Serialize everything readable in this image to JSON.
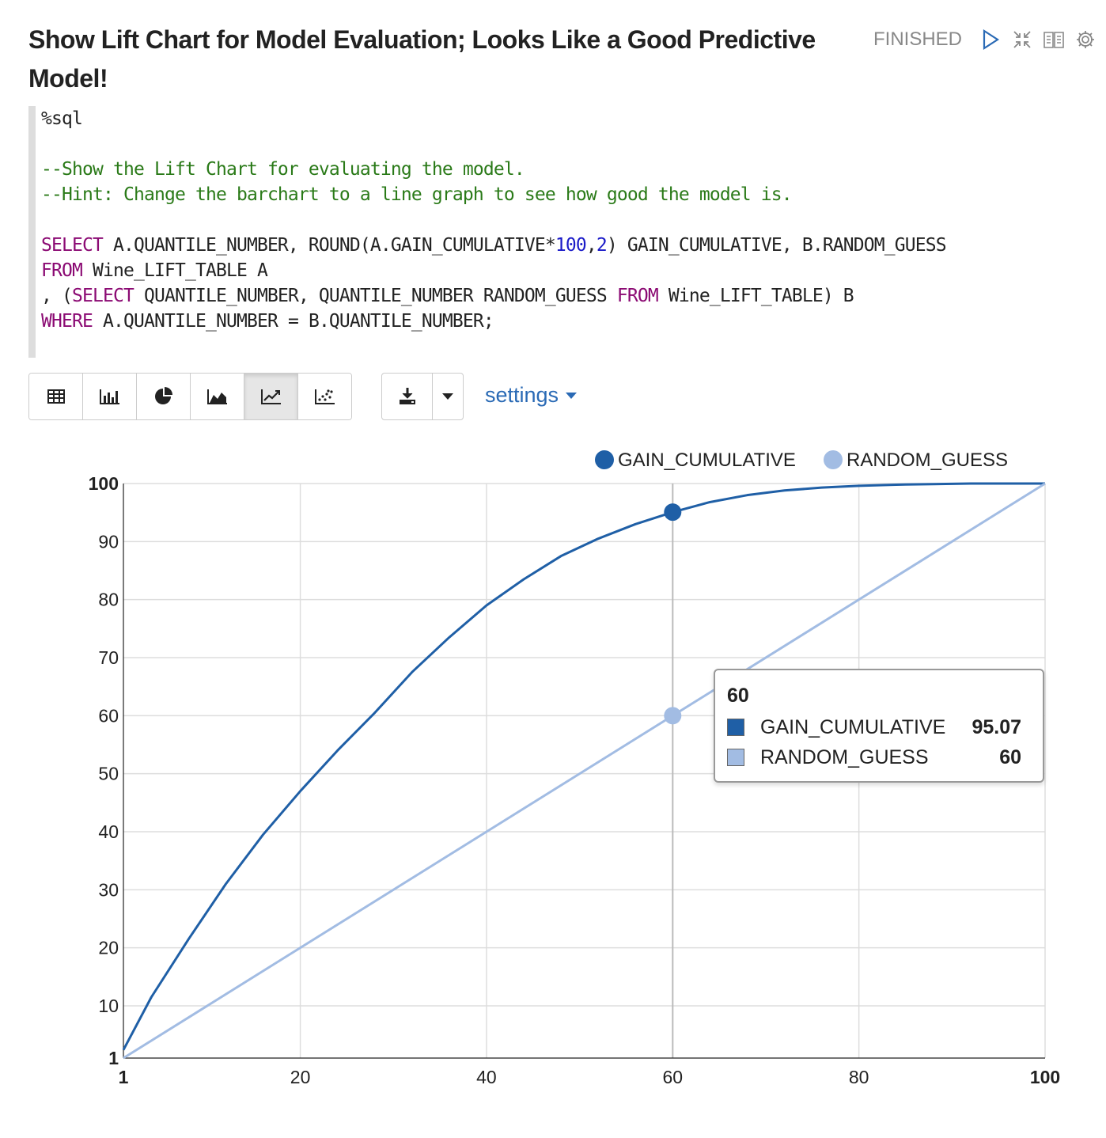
{
  "paragraph": {
    "title": "Show Lift Chart for Model Evaluation; Looks Like a Good Predictive Model!",
    "status": "FINISHED",
    "icons": [
      "run-icon",
      "collapse-icon",
      "book-icon",
      "settings-gear-icon"
    ]
  },
  "editor": {
    "lines": [
      [
        {
          "t": "%sql",
          "c": ""
        }
      ],
      [],
      [
        {
          "t": "--Show the Lift Chart for evaluating the model.",
          "c": "cm"
        }
      ],
      [
        {
          "t": "--Hint: Change the barchart to a line graph to see how good the model is.",
          "c": "cm"
        }
      ],
      [],
      [
        {
          "t": "SELECT",
          "c": "kw"
        },
        {
          "t": " A.QUANTILE_NUMBER, ROUND(A.GAIN_CUMULATIVE*",
          "c": ""
        },
        {
          "t": "100",
          "c": "num"
        },
        {
          "t": ",",
          "c": ""
        },
        {
          "t": "2",
          "c": "num"
        },
        {
          "t": ") GAIN_CUMULATIVE, B.RANDOM_GUESS",
          "c": ""
        }
      ],
      [
        {
          "t": "FROM",
          "c": "kw"
        },
        {
          "t": " Wine_LIFT_TABLE A",
          "c": ""
        }
      ],
      [
        {
          "t": ", (",
          "c": ""
        },
        {
          "t": "SELECT",
          "c": "kw"
        },
        {
          "t": " QUANTILE_NUMBER, QUANTILE_NUMBER RANDOM_GUESS ",
          "c": ""
        },
        {
          "t": "FROM",
          "c": "kw"
        },
        {
          "t": " Wine_LIFT_TABLE) B",
          "c": ""
        }
      ],
      [
        {
          "t": "WHERE",
          "c": "kw"
        },
        {
          "t": " A.QUANTILE_NUMBER = B.QUANTILE_NUMBER;",
          "c": ""
        }
      ]
    ]
  },
  "toolbar": {
    "views": [
      "table-icon",
      "bar-chart-icon",
      "pie-chart-icon",
      "area-chart-icon",
      "line-chart-icon",
      "scatter-chart-icon"
    ],
    "active_view": "line-chart-icon",
    "download_icon": "download-icon",
    "dropdown_icon": "caret-down-icon",
    "settings_label": "settings"
  },
  "colors": {
    "gain": "#1f5fa6",
    "random": "#a2bce3",
    "link": "#2a6ab5"
  },
  "chart_data": {
    "type": "line",
    "xlim": [
      1,
      100
    ],
    "ylim": [
      1,
      100
    ],
    "x_ticks": [
      1,
      20,
      40,
      60,
      80,
      100
    ],
    "y_ticks": [
      1,
      10,
      20,
      30,
      40,
      50,
      60,
      70,
      80,
      90,
      100
    ],
    "grid": true,
    "legend_position": "top-right",
    "series": [
      {
        "name": "GAIN_CUMULATIVE",
        "x": [
          1,
          4,
          8,
          12,
          16,
          20,
          24,
          28,
          32,
          36,
          40,
          44,
          48,
          52,
          56,
          60,
          64,
          68,
          72,
          76,
          80,
          84,
          88,
          92,
          96,
          100
        ],
        "values": [
          2.4,
          11.5,
          21.5,
          31,
          39.5,
          47,
          54,
          60.5,
          67.5,
          73.5,
          79,
          83.5,
          87.5,
          90.5,
          93,
          95.07,
          96.8,
          98,
          98.8,
          99.3,
          99.6,
          99.8,
          99.9,
          100,
          100,
          100
        ]
      },
      {
        "name": "RANDOM_GUESS",
        "x": [
          1,
          100
        ],
        "values": [
          1,
          100
        ]
      }
    ],
    "highlight": {
      "x": 60,
      "x_label": "60",
      "items": [
        {
          "name": "GAIN_CUMULATIVE",
          "value": "95.07"
        },
        {
          "name": "RANDOM_GUESS",
          "value": "60"
        }
      ]
    }
  }
}
